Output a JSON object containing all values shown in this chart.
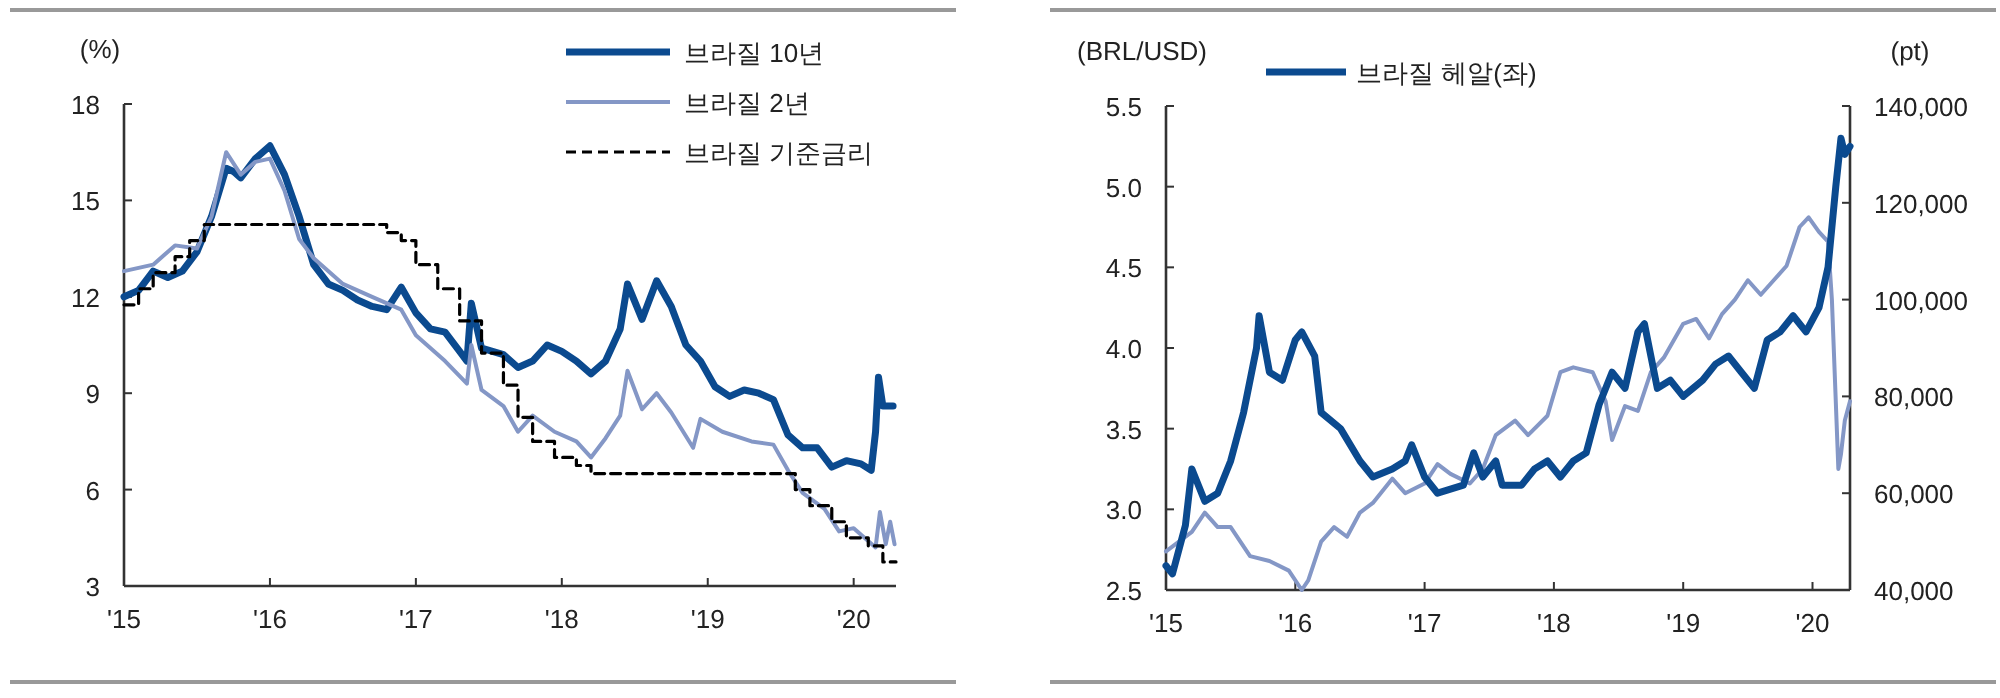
{
  "chart_data": [
    {
      "type": "line",
      "ylabel": "(%)",
      "legend": "top right",
      "xlim": [
        2015,
        2020.29
      ],
      "xticks": [
        {
          "value": 2015,
          "label": "'15"
        },
        {
          "value": 2016,
          "label": "'16"
        },
        {
          "value": 2017,
          "label": "'17"
        },
        {
          "value": 2018,
          "label": "'18"
        },
        {
          "value": 2019,
          "label": "'19"
        },
        {
          "value": 2020,
          "label": "'20"
        }
      ],
      "ylim": [
        3,
        18
      ],
      "yticks": [
        3,
        6,
        9,
        12,
        15,
        18
      ],
      "series": [
        {
          "name": "브라질 10년",
          "color": "#0b4a8f",
          "x": [
            2015.0,
            2015.1,
            2015.2,
            2015.3,
            2015.4,
            2015.5,
            2015.6,
            2015.7,
            2015.75,
            2015.8,
            2015.9,
            2016.0,
            2016.1,
            2016.2,
            2016.3,
            2016.4,
            2016.5,
            2016.6,
            2016.7,
            2016.8,
            2016.9,
            2017.0,
            2017.1,
            2017.2,
            2017.3,
            2017.35,
            2017.38,
            2017.45,
            2017.6,
            2017.7,
            2017.8,
            2017.9,
            2018.0,
            2018.1,
            2018.2,
            2018.3,
            2018.4,
            2018.45,
            2018.55,
            2018.65,
            2018.75,
            2018.85,
            2018.95,
            2019.05,
            2019.15,
            2019.25,
            2019.35,
            2019.45,
            2019.55,
            2019.65,
            2019.75,
            2019.85,
            2019.95,
            2020.05,
            2020.12,
            2020.15,
            2020.17,
            2020.2,
            2020.27
          ],
          "values": [
            12.0,
            12.2,
            12.8,
            12.6,
            12.8,
            13.4,
            14.5,
            16.0,
            15.9,
            15.7,
            16.3,
            16.7,
            15.8,
            14.5,
            13.0,
            12.4,
            12.2,
            11.9,
            11.7,
            11.6,
            12.3,
            11.5,
            11.0,
            10.9,
            10.3,
            10.0,
            11.8,
            10.4,
            10.2,
            9.8,
            10.0,
            10.5,
            10.3,
            10.0,
            9.6,
            10.0,
            11.0,
            12.4,
            11.3,
            12.5,
            11.7,
            10.5,
            10.0,
            9.2,
            8.9,
            9.1,
            9.0,
            8.8,
            7.7,
            7.3,
            7.3,
            6.7,
            6.9,
            6.8,
            6.6,
            7.8,
            9.5,
            8.6,
            8.6
          ]
        },
        {
          "name": "브라질 2년",
          "color": "#8497c6",
          "x": [
            2015.0,
            2015.2,
            2015.35,
            2015.5,
            2015.6,
            2015.7,
            2015.8,
            2015.9,
            2016.0,
            2016.1,
            2016.2,
            2016.3,
            2016.5,
            2016.7,
            2016.9,
            2017.0,
            2017.2,
            2017.35,
            2017.38,
            2017.45,
            2017.6,
            2017.7,
            2017.8,
            2017.95,
            2018.1,
            2018.2,
            2018.3,
            2018.4,
            2018.45,
            2018.55,
            2018.65,
            2018.75,
            2018.9,
            2018.95,
            2019.1,
            2019.3,
            2019.45,
            2019.55,
            2019.65,
            2019.8,
            2019.9,
            2020.0,
            2020.15,
            2020.18,
            2020.22,
            2020.25,
            2020.28
          ],
          "values": [
            12.8,
            13.0,
            13.6,
            13.5,
            14.5,
            16.5,
            15.8,
            16.2,
            16.3,
            15.3,
            13.8,
            13.2,
            12.4,
            12.0,
            11.6,
            10.8,
            10.0,
            9.3,
            10.5,
            9.1,
            8.6,
            7.8,
            8.3,
            7.8,
            7.5,
            7.0,
            7.6,
            8.3,
            9.7,
            8.5,
            9.0,
            8.4,
            7.3,
            8.2,
            7.8,
            7.5,
            7.4,
            6.6,
            5.9,
            5.4,
            4.7,
            4.8,
            4.2,
            5.3,
            4.3,
            5.0,
            4.3
          ]
        },
        {
          "name": "브라질 기준금리",
          "color": "#000000",
          "type": "step",
          "line_style": "dashed",
          "x": [
            2015.0,
            2015.1,
            2015.2,
            2015.35,
            2015.45,
            2015.55,
            2016.8,
            2016.9,
            2017.0,
            2017.15,
            2017.3,
            2017.45,
            2017.6,
            2017.7,
            2017.8,
            2017.95,
            2018.1,
            2018.2,
            2019.6,
            2019.7,
            2019.85,
            2019.95,
            2020.1,
            2020.2,
            2020.29
          ],
          "values": [
            11.75,
            12.25,
            12.75,
            13.25,
            13.75,
            14.25,
            14.0,
            13.75,
            13.0,
            12.25,
            11.25,
            10.25,
            9.25,
            8.25,
            7.5,
            7.0,
            6.75,
            6.5,
            6.0,
            5.5,
            5.0,
            4.5,
            4.25,
            3.75,
            3.75
          ]
        }
      ]
    },
    {
      "type": "line",
      "ylabel": "(BRL/USD)",
      "y2label": "(pt)",
      "legend": "top",
      "xlim": [
        2015,
        2020.29
      ],
      "xticks": [
        {
          "value": 2015,
          "label": "'15"
        },
        {
          "value": 2016,
          "label": "'16"
        },
        {
          "value": 2017,
          "label": "'17"
        },
        {
          "value": 2018,
          "label": "'18"
        },
        {
          "value": 2019,
          "label": "'19"
        },
        {
          "value": 2020,
          "label": "'20"
        }
      ],
      "ylim": [
        2.5,
        5.5
      ],
      "yticks": [
        2.5,
        {
          "value": 3,
          "label": "3.0"
        },
        3.5,
        {
          "value": 4,
          "label": "4.0"
        },
        4.5,
        {
          "value": 5,
          "label": "5.0"
        },
        5.5
      ],
      "y2lim": [
        40000,
        140000
      ],
      "y2ticks": [
        {
          "value": 40000,
          "label": "40,000"
        },
        {
          "value": 60000,
          "label": "60,000"
        },
        {
          "value": 80000,
          "label": "80,000"
        },
        {
          "value": 100000,
          "label": "100,000"
        },
        {
          "value": 120000,
          "label": "120,000"
        },
        {
          "value": 140000,
          "label": "140,000"
        }
      ],
      "series": [
        {
          "color": "#8497c6",
          "axis": "y2",
          "x": [
            2015.0,
            2015.1,
            2015.2,
            2015.3,
            2015.4,
            2015.5,
            2015.65,
            2015.8,
            2015.95,
            2016.05,
            2016.1,
            2016.2,
            2016.3,
            2016.4,
            2016.5,
            2016.6,
            2016.75,
            2016.85,
            2017.0,
            2017.1,
            2017.2,
            2017.35,
            2017.45,
            2017.55,
            2017.7,
            2017.8,
            2017.95,
            2018.05,
            2018.15,
            2018.3,
            2018.4,
            2018.45,
            2018.55,
            2018.65,
            2018.75,
            2018.85,
            2019.0,
            2019.1,
            2019.2,
            2019.3,
            2019.4,
            2019.5,
            2019.6,
            2019.7,
            2019.8,
            2019.9,
            2019.97,
            2020.05,
            2020.12,
            2020.15,
            2020.2,
            2020.22,
            2020.25,
            2020.29
          ],
          "values": [
            48000,
            50000,
            52000,
            56000,
            53000,
            53000,
            47000,
            46000,
            44000,
            40000,
            42000,
            50000,
            53000,
            51000,
            56000,
            58000,
            63000,
            60000,
            62000,
            66000,
            64000,
            62000,
            65000,
            72000,
            75000,
            72000,
            76000,
            85000,
            86000,
            85000,
            79000,
            71000,
            78000,
            77000,
            85000,
            88000,
            95000,
            96000,
            92000,
            97000,
            100000,
            104000,
            101000,
            104000,
            107000,
            115000,
            117000,
            114000,
            112000,
            100000,
            65000,
            68000,
            75000,
            79000
          ]
        },
        {
          "name": "브라질 헤알(좌)",
          "color": "#0b4a8f",
          "x": [
            2015.0,
            2015.05,
            2015.15,
            2015.2,
            2015.3,
            2015.4,
            2015.5,
            2015.6,
            2015.7,
            2015.72,
            2015.8,
            2015.9,
            2016.0,
            2016.05,
            2016.15,
            2016.2,
            2016.35,
            2016.5,
            2016.6,
            2016.75,
            2016.85,
            2016.9,
            2017.0,
            2017.1,
            2017.3,
            2017.38,
            2017.45,
            2017.55,
            2017.6,
            2017.75,
            2017.85,
            2017.95,
            2018.05,
            2018.15,
            2018.25,
            2018.35,
            2018.45,
            2018.55,
            2018.65,
            2018.7,
            2018.8,
            2018.9,
            2019.0,
            2019.15,
            2019.25,
            2019.35,
            2019.45,
            2019.55,
            2019.65,
            2019.75,
            2019.85,
            2019.95,
            2020.05,
            2020.12,
            2020.18,
            2020.22,
            2020.25,
            2020.29
          ],
          "values": [
            2.65,
            2.6,
            2.9,
            3.25,
            3.05,
            3.1,
            3.3,
            3.6,
            4.0,
            4.2,
            3.85,
            3.8,
            4.05,
            4.1,
            3.95,
            3.6,
            3.5,
            3.3,
            3.2,
            3.25,
            3.3,
            3.4,
            3.2,
            3.1,
            3.15,
            3.35,
            3.2,
            3.3,
            3.15,
            3.15,
            3.25,
            3.3,
            3.2,
            3.3,
            3.35,
            3.65,
            3.85,
            3.75,
            4.1,
            4.15,
            3.75,
            3.8,
            3.7,
            3.8,
            3.9,
            3.95,
            3.85,
            3.75,
            4.05,
            4.1,
            4.2,
            4.1,
            4.25,
            4.5,
            5.0,
            5.3,
            5.2,
            5.25
          ]
        }
      ]
    }
  ]
}
